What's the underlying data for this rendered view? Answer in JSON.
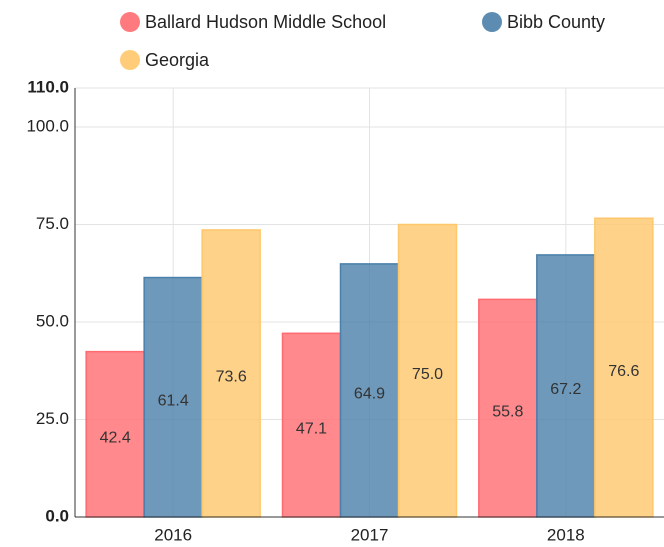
{
  "chart_data": {
    "type": "bar",
    "categories": [
      "2016",
      "2017",
      "2018"
    ],
    "series": [
      {
        "name": "Ballard Hudson Middle School",
        "color": "#ff6b70",
        "values": [
          42.4,
          47.1,
          55.8
        ],
        "value_labels": [
          "42.4",
          "47.1",
          "55.8"
        ]
      },
      {
        "name": "Bibb County",
        "color": "#4a80aa",
        "values": [
          61.4,
          64.9,
          67.2
        ],
        "value_labels": [
          "61.4",
          "64.9",
          "67.2"
        ]
      },
      {
        "name": "Georgia",
        "color": "#ffc76b",
        "values": [
          73.6,
          75.0,
          76.6
        ],
        "value_labels": [
          "73.6",
          "75.0",
          "76.6"
        ]
      }
    ],
    "ylim": [
      0,
      110
    ],
    "yticks": [
      {
        "value": 0,
        "label": "0.0"
      },
      {
        "value": 25,
        "label": "25.0"
      },
      {
        "value": 50,
        "label": "50.0"
      },
      {
        "value": 75,
        "label": "75.0"
      },
      {
        "value": 100,
        "label": "100.0"
      },
      {
        "value": 110,
        "label": "110.0"
      }
    ],
    "grid": true,
    "legend": "top"
  }
}
